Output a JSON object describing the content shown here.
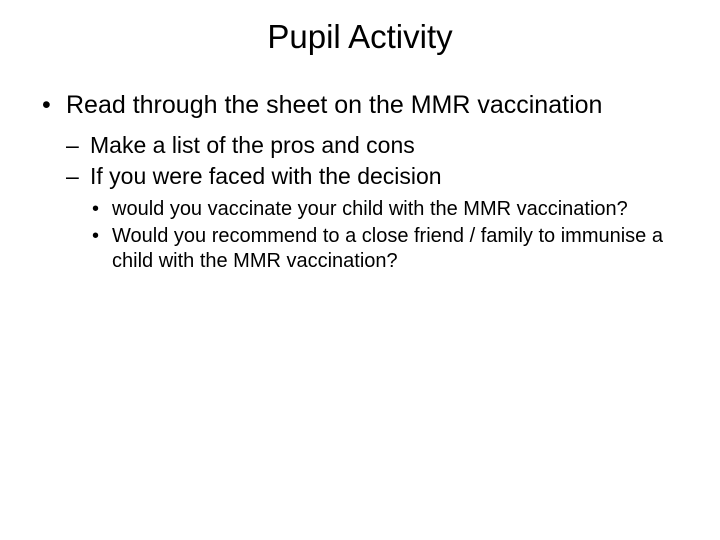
{
  "title": "Pupil Activity",
  "bullets": {
    "l1_0": "Read through the sheet on the MMR vaccination",
    "l2_0": "Make a list of the pros and cons",
    "l2_1": "If you were faced with the decision",
    "l3_0": "would you vaccinate your child with the MMR vaccination?",
    "l3_1": "Would you recommend to a close friend / family to immunise a child with the MMR vaccination?"
  },
  "colors": {
    "background": "#ffffff",
    "text": "#000000"
  },
  "typography": {
    "title_fontsize": 33,
    "l1_fontsize": 25,
    "l2_fontsize": 23,
    "l3_fontsize": 20,
    "font_family": "Arial"
  }
}
